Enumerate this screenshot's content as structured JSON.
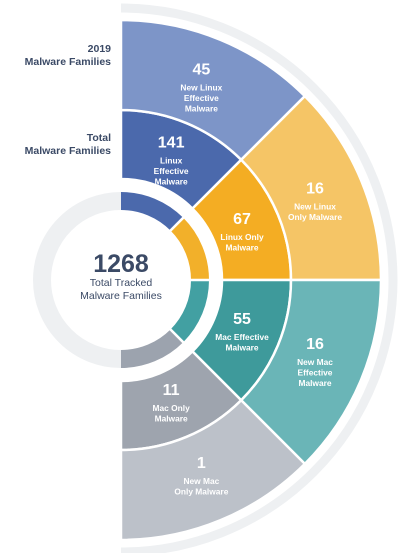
{
  "side_labels": {
    "outer": {
      "line1": "2019",
      "line2": "Malware Families"
    },
    "middle": {
      "line1": "Total",
      "line2": "Malware Families"
    }
  },
  "center": {
    "value": "1268",
    "line1": "Total Tracked",
    "line2": "Malware Families"
  },
  "colors": {
    "linux": "#f2b02a",
    "mac": "#42a0a2",
    "mac_only": "#9ca3ae",
    "linux_effective": "#4b69ac",
    "gray_ring": "#eef0f2"
  },
  "chart_data": {
    "type": "sunburst",
    "total": {
      "value": 1268,
      "label": "Total Tracked Malware Families"
    },
    "rings": [
      {
        "name": "Total Malware Families",
        "segments": [
          {
            "category": "linux_effective",
            "value": 141,
            "text": [
              "141",
              "Linux",
              "Effective",
              "Malware"
            ],
            "color": "#4b69ac"
          },
          {
            "category": "linux_only",
            "value": 67,
            "text": [
              "67",
              "Linux Only",
              "Malware"
            ],
            "color": "#f4ad23"
          },
          {
            "category": "mac_effective",
            "value": 55,
            "text": [
              "55",
              "Mac Effective",
              "Malware"
            ],
            "color": "#3e9a9b"
          },
          {
            "category": "mac_only",
            "value": 11,
            "text": [
              "11",
              "Mac Only",
              "Malware"
            ],
            "color": "#9ea4ae"
          }
        ]
      },
      {
        "name": "2019 Malware Families",
        "segments": [
          {
            "category": "linux_effective",
            "value": 45,
            "text": [
              "45",
              "New Linux",
              "Effective",
              "Malware"
            ],
            "color": "#7d95c8"
          },
          {
            "category": "linux_only",
            "value": 16,
            "text": [
              "16",
              "New Linux",
              "Only Malware"
            ],
            "color": "#f5c566"
          },
          {
            "category": "mac_effective",
            "value": 16,
            "text": [
              "16",
              "New Mac",
              "Effective",
              "Malware"
            ],
            "color": "#6ab5b7"
          },
          {
            "category": "mac_only",
            "value": 1,
            "text": [
              "1",
              "New Mac",
              "Only Malware"
            ],
            "color": "#bcc1c9"
          }
        ]
      }
    ]
  }
}
